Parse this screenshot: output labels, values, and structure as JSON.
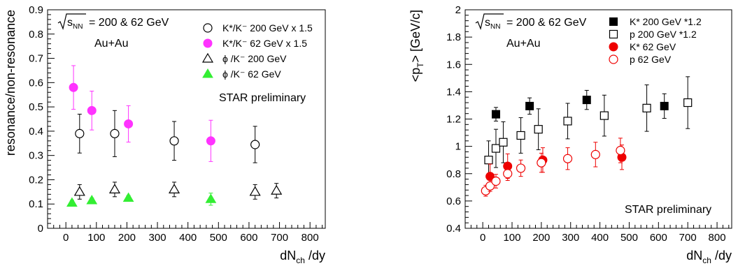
{
  "chart_data": [
    {
      "type": "scatter",
      "ylabel": "resonance/non-resonance",
      "xlabel_main": "dN",
      "xlabel_sub": "ch",
      "xlabel_tail": " /dy",
      "xlim": [
        -60,
        850
      ],
      "ylim": [
        0,
        0.9
      ],
      "xticks": [
        0,
        100,
        200,
        300,
        400,
        500,
        600,
        700,
        800
      ],
      "yticks": [
        0,
        0.1,
        0.2,
        0.3,
        0.4,
        0.5,
        0.6,
        0.7,
        0.8,
        0.9
      ],
      "ytick_labels": [
        "0",
        "0.1",
        "0.2",
        "0.3",
        "0.4",
        "0.5",
        "0.6",
        "0.7",
        "0.8",
        "0.9"
      ],
      "energy_label": "= 200 & 62 GeV",
      "sqrt_label": "s",
      "sqrt_sub": "NN",
      "system_label": "Au+Au",
      "preliminary_label": "STAR preliminary",
      "series": [
        {
          "name": "K*/K⁻ 200 GeV x 1.5",
          "marker": "circle-open",
          "color": "#000000",
          "x": [
            45,
            160,
            355,
            620
          ],
          "y": [
            0.39,
            0.39,
            0.36,
            0.345
          ],
          "err": [
            0.08,
            0.095,
            0.08,
            0.075
          ]
        },
        {
          "name": "K*/K⁻ 62 GeV x 1.5",
          "marker": "circle-filled",
          "color": "#ff33ff",
          "x": [
            25,
            85,
            205,
            475
          ],
          "y": [
            0.58,
            0.485,
            0.43,
            0.36
          ],
          "err": [
            0.09,
            0.08,
            0.075,
            0.085
          ]
        },
        {
          "name": "ϕ /K⁻ 200 GeV",
          "marker": "triangle-open",
          "color": "#000000",
          "x": [
            45,
            160,
            355,
            620,
            690
          ],
          "y": [
            0.15,
            0.16,
            0.16,
            0.15,
            0.155
          ],
          "err": [
            0.03,
            0.03,
            0.03,
            0.03,
            0.03
          ]
        },
        {
          "name": "ϕ /K⁻ 62 GeV",
          "marker": "triangle-filled",
          "color": "#33ee33",
          "x": [
            20,
            85,
            205,
            475
          ],
          "y": [
            0.105,
            0.115,
            0.125,
            0.12
          ],
          "err": [
            0.01,
            0.01,
            0.01,
            0.025
          ]
        }
      ]
    },
    {
      "type": "scatter",
      "ylabel_main": "<p",
      "ylabel_sub": "T",
      "ylabel_tail": "> [GeV/c]",
      "xlabel_main": "dN",
      "xlabel_sub": "ch",
      "xlabel_tail": " /dy",
      "xlim": [
        -60,
        850
      ],
      "ylim": [
        0.4,
        2
      ],
      "xticks": [
        0,
        100,
        200,
        300,
        400,
        500,
        600,
        700,
        800
      ],
      "yticks": [
        0.4,
        0.6,
        0.8,
        1.0,
        1.2,
        1.4,
        1.6,
        1.8,
        2.0
      ],
      "ytick_labels": [
        "0.4",
        "0.6",
        "0.8",
        "1",
        "1.2",
        "1.4",
        "1.6",
        "1.8",
        "2"
      ],
      "energy_label": "= 200 & 62 GeV",
      "sqrt_label": "s",
      "sqrt_sub": "NN",
      "system_label": "Au+Au",
      "preliminary_label": "STAR preliminary",
      "series": [
        {
          "name": "K*  200 GeV *1.2",
          "marker": "square-filled",
          "color": "#000000",
          "x": [
            45,
            160,
            355,
            620
          ],
          "y": [
            1.235,
            1.295,
            1.34,
            1.295
          ],
          "err": [
            0.05,
            0.06,
            0.07,
            0.09
          ]
        },
        {
          "name": "p  200 GeV *1.2",
          "marker": "square-open",
          "color": "#000000",
          "x": [
            20,
            45,
            70,
            130,
            190,
            290,
            415,
            560,
            700
          ],
          "y": [
            0.9,
            0.985,
            1.03,
            1.08,
            1.125,
            1.185,
            1.225,
            1.28,
            1.32
          ],
          "err": [
            0.14,
            0.14,
            0.15,
            0.13,
            0.15,
            0.13,
            0.15,
            0.17,
            0.19
          ]
        },
        {
          "name": "K*  62 GeV",
          "marker": "circle-filled",
          "color": "#ee0000",
          "x": [
            25,
            85,
            205,
            475
          ],
          "y": [
            0.78,
            0.855,
            0.9,
            0.92
          ],
          "err": [
            0.09,
            0.09,
            0.09,
            0.09
          ]
        },
        {
          "name": "p  62 GeV",
          "marker": "circle-open",
          "color": "#ee0000",
          "x": [
            10,
            25,
            45,
            85,
            130,
            200,
            290,
            385,
            470
          ],
          "y": [
            0.675,
            0.71,
            0.745,
            0.8,
            0.84,
            0.88,
            0.91,
            0.94,
            0.97
          ],
          "err": [
            0.04,
            0.04,
            0.05,
            0.05,
            0.06,
            0.07,
            0.08,
            0.09,
            0.09
          ]
        }
      ]
    }
  ]
}
